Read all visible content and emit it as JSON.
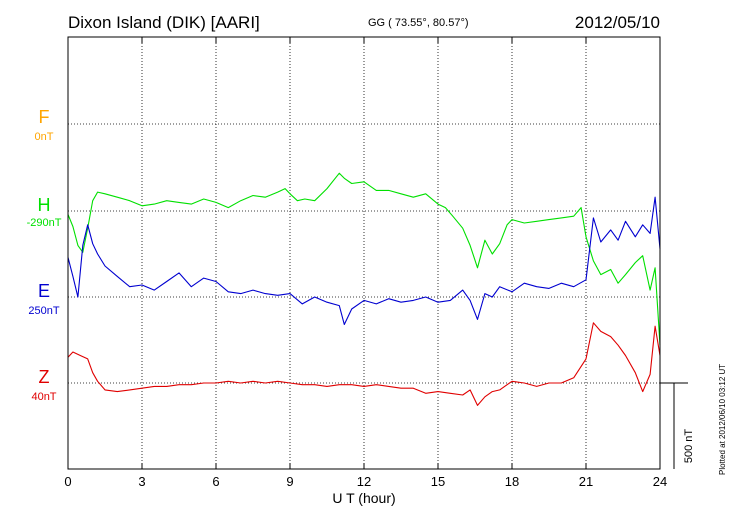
{
  "header": {
    "station": "Dixon Island (DIK)  [AARI]",
    "coords": "GG ( 73.55°,  80.57°)",
    "date": "2012/05/10"
  },
  "channels": [
    {
      "key": "F",
      "name": "F",
      "baseline": "0nT",
      "color": "#ffa500"
    },
    {
      "key": "H",
      "name": "H",
      "baseline": "-290nT",
      "color": "#00e000"
    },
    {
      "key": "E",
      "name": "E",
      "baseline": "250nT",
      "color": "#0000d0"
    },
    {
      "key": "Z",
      "name": "Z",
      "baseline": "40nT",
      "color": "#e00000"
    }
  ],
  "scale_bar_label": "500 nT",
  "plotted_note": "Plotted at 2012/06/10 03:12 UT",
  "chart_data": {
    "type": "line",
    "xlabel": "U T (hour)",
    "xlim": [
      0,
      24
    ],
    "xticks": [
      "0",
      "3",
      "6",
      "9",
      "12",
      "15",
      "18",
      "21",
      "24"
    ],
    "grid": true,
    "series": [
      {
        "name": "H",
        "color": "#00e000",
        "x": [
          0,
          0.2,
          0.4,
          0.6,
          0.8,
          1,
          1.2,
          1.5,
          2,
          2.5,
          3,
          3.5,
          4,
          4.5,
          5,
          5.5,
          6,
          6.5,
          7,
          7.5,
          8,
          8.5,
          8.8,
          9,
          9.3,
          9.6,
          10,
          10.5,
          11,
          11.2,
          11.5,
          12,
          12.5,
          13,
          13.5,
          14,
          14.5,
          15,
          15.3,
          15.6,
          16,
          16.3,
          16.6,
          16.9,
          17.2,
          17.5,
          17.8,
          18,
          18.5,
          19,
          19.5,
          20,
          20.5,
          20.8,
          21,
          21.3,
          21.6,
          22,
          22.3,
          22.6,
          23,
          23.3,
          23.6,
          23.8,
          24
        ],
        "y": [
          -20,
          -90,
          -200,
          -240,
          -100,
          60,
          110,
          100,
          80,
          60,
          30,
          40,
          60,
          50,
          40,
          70,
          50,
          20,
          60,
          90,
          80,
          110,
          130,
          100,
          60,
          70,
          60,
          130,
          220,
          190,
          160,
          170,
          120,
          120,
          100,
          80,
          100,
          40,
          20,
          -30,
          -100,
          -200,
          -330,
          -170,
          -250,
          -190,
          -80,
          -50,
          -70,
          -60,
          -50,
          -40,
          -30,
          20,
          -150,
          -290,
          -370,
          -340,
          -420,
          -370,
          -300,
          -260,
          -460,
          -330,
          -780
        ]
      },
      {
        "name": "E",
        "color": "#0000d0",
        "x": [
          0,
          0.2,
          0.4,
          0.6,
          0.8,
          1,
          1.2,
          1.5,
          2,
          2.5,
          3,
          3.5,
          4,
          4.5,
          5,
          5.5,
          6,
          6.5,
          7,
          7.5,
          8,
          8.5,
          9,
          9.5,
          10,
          10.5,
          11,
          11.2,
          11.5,
          12,
          12.5,
          13,
          13.5,
          14,
          14.5,
          15,
          15.5,
          16,
          16.3,
          16.6,
          16.9,
          17.2,
          17.5,
          18,
          18.5,
          19,
          19.5,
          20,
          20.5,
          21,
          21.3,
          21.6,
          22,
          22.3,
          22.6,
          23,
          23.3,
          23.6,
          23.8,
          24
        ],
        "y": [
          230,
          120,
          0,
          300,
          420,
          310,
          250,
          180,
          120,
          60,
          70,
          40,
          90,
          140,
          60,
          110,
          90,
          30,
          20,
          40,
          20,
          10,
          20,
          -40,
          0,
          -30,
          -50,
          -160,
          -70,
          -20,
          -40,
          -10,
          -30,
          -20,
          0,
          -30,
          -20,
          40,
          -20,
          -130,
          20,
          0,
          60,
          30,
          80,
          60,
          50,
          80,
          60,
          100,
          460,
          320,
          390,
          330,
          440,
          350,
          420,
          370,
          580,
          280
        ]
      },
      {
        "name": "Z",
        "color": "#e00000",
        "x": [
          0,
          0.2,
          0.5,
          0.8,
          1,
          1.2,
          1.5,
          2,
          2.5,
          3,
          3.5,
          4,
          4.5,
          5,
          5.5,
          6,
          6.5,
          7,
          7.5,
          8,
          8.5,
          9,
          9.5,
          10,
          10.5,
          11,
          11.5,
          12,
          12.5,
          13,
          13.5,
          14,
          14.5,
          15,
          15.5,
          16,
          16.3,
          16.6,
          16.9,
          17.2,
          17.5,
          17.8,
          18,
          18.5,
          19,
          19.5,
          20,
          20.5,
          21,
          21.3,
          21.6,
          22,
          22.3,
          22.6,
          23,
          23.3,
          23.6,
          23.8,
          24
        ],
        "y": [
          150,
          180,
          160,
          140,
          60,
          10,
          -40,
          -50,
          -40,
          -30,
          -20,
          -20,
          -10,
          -10,
          0,
          0,
          10,
          0,
          10,
          0,
          10,
          0,
          -10,
          -10,
          -20,
          -10,
          -10,
          -20,
          -10,
          -20,
          -30,
          -30,
          -60,
          -50,
          -60,
          -70,
          -40,
          -130,
          -80,
          -50,
          -40,
          -10,
          10,
          0,
          -20,
          0,
          0,
          30,
          140,
          350,
          300,
          270,
          220,
          160,
          60,
          -50,
          50,
          330,
          160
        ]
      }
    ]
  }
}
